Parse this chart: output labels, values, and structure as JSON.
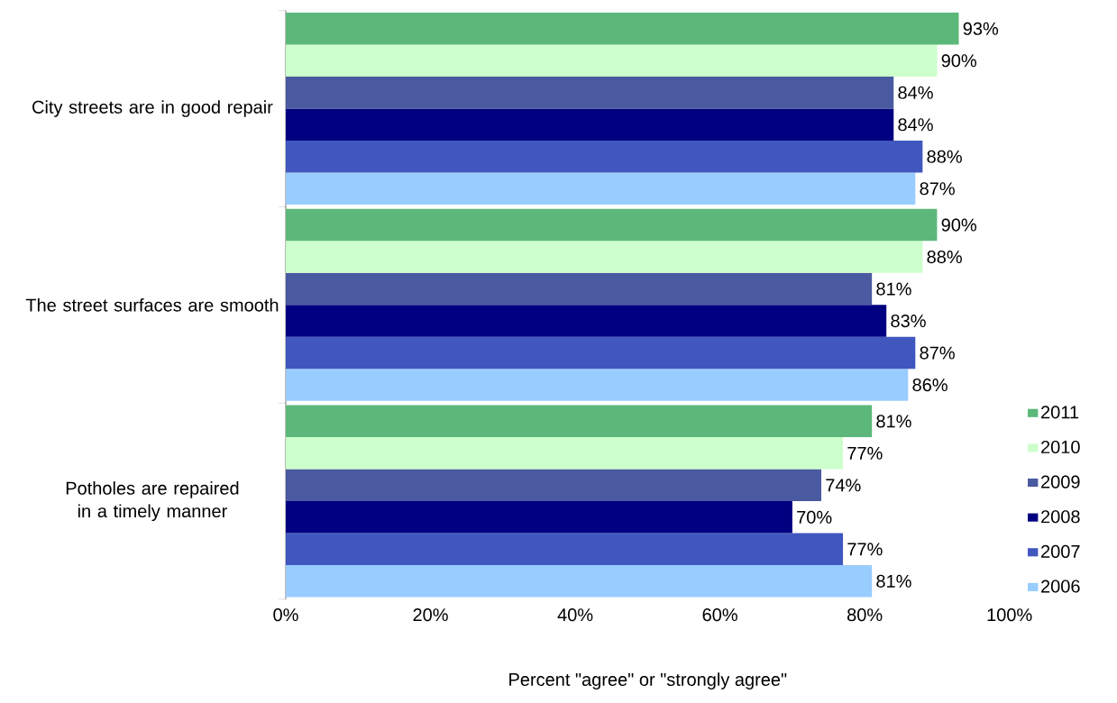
{
  "chart_data": {
    "type": "bar",
    "orientation": "horizontal",
    "xlabel": "Percent \"agree\" or \"strongly agree\"",
    "categories": [
      "City streets are in good repair",
      "The street surfaces are smooth",
      "Potholes are repaired in a timely manner"
    ],
    "series": [
      {
        "name": "2011",
        "color": "#5cb87a",
        "values": [
          93,
          90,
          81
        ],
        "value_labels": [
          "93%",
          "90%",
          "81%"
        ]
      },
      {
        "name": "2010",
        "color": "#ccffcc",
        "values": [
          90,
          88,
          77
        ],
        "value_labels": [
          "90%",
          "88%",
          "77%"
        ]
      },
      {
        "name": "2009",
        "color": "#4a5aa0",
        "values": [
          84,
          81,
          74
        ],
        "value_labels": [
          "84%",
          "81%",
          "74%"
        ]
      },
      {
        "name": "2008",
        "color": "#000080",
        "values": [
          84,
          83,
          70
        ],
        "value_labels": [
          "84%",
          "83%",
          "70%"
        ]
      },
      {
        "name": "2007",
        "color": "#4057c0",
        "values": [
          88,
          87,
          77
        ],
        "value_labels": [
          "88%",
          "87%",
          "77%"
        ]
      },
      {
        "name": "2006",
        "color": "#99ccff",
        "values": [
          87,
          86,
          81
        ],
        "value_labels": [
          "87%",
          "86%",
          "81%"
        ]
      }
    ],
    "xlim": [
      0,
      100
    ],
    "xticks": [
      {
        "value": 0,
        "label": "0%"
      },
      {
        "value": 20,
        "label": "20%"
      },
      {
        "value": 40,
        "label": "40%"
      },
      {
        "value": 60,
        "label": "60%"
      },
      {
        "value": 80,
        "label": "80%"
      },
      {
        "value": 100,
        "label": "100%"
      }
    ],
    "legend": "bottom right"
  }
}
